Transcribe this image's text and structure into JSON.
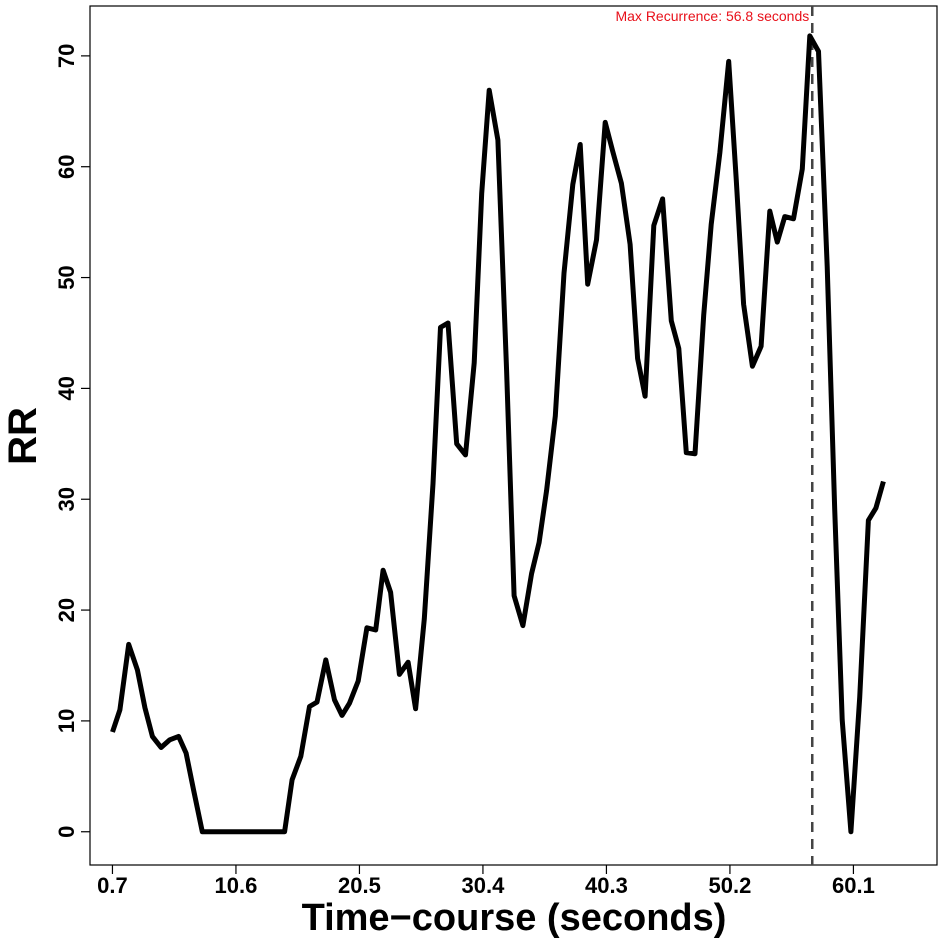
{
  "chart_data": {
    "type": "line",
    "title": "",
    "xlabel": "Time−course (seconds)",
    "ylabel": "RR",
    "xlim": [
      -1.1,
      66.8
    ],
    "ylim": [
      -3,
      74.5
    ],
    "x_ticks": [
      0.7,
      10.6,
      20.5,
      30.4,
      40.3,
      50.2,
      60.1
    ],
    "x_tick_labels": [
      "0.7",
      "10.6",
      "20.5",
      "30.4",
      "40.3",
      "50.2",
      "60.1"
    ],
    "y_ticks": [
      0,
      10,
      20,
      30,
      40,
      50,
      60,
      70
    ],
    "y_tick_labels": [
      "0",
      "10",
      "20",
      "30",
      "40",
      "50",
      "60",
      "70"
    ],
    "grid": false,
    "legend": "none",
    "series": [
      {
        "color": "#000000",
        "x": [
          0.7,
          1.3,
          2.0,
          2.7,
          3.3,
          3.9,
          4.6,
          5.3,
          6.0,
          6.6,
          7.2,
          7.9,
          8.6,
          9.2,
          9.9,
          10.6,
          11.2,
          11.8,
          12.5,
          13.2,
          13.9,
          14.5,
          15.1,
          15.8,
          16.5,
          17.1,
          17.8,
          18.5,
          19.1,
          19.7,
          20.4,
          21.1,
          21.8,
          22.4,
          23.0,
          23.7,
          24.4,
          25.0,
          25.7,
          26.4,
          27.0,
          27.6,
          28.3,
          29.0,
          29.7,
          30.3,
          30.9,
          31.6,
          32.3,
          32.9,
          33.6,
          34.3,
          34.9,
          35.5,
          36.2,
          36.9,
          37.6,
          38.2,
          38.8,
          39.5,
          40.2,
          40.8,
          41.5,
          42.2,
          42.8,
          43.4,
          44.1,
          44.8,
          45.5,
          46.1,
          46.7,
          47.4,
          48.1,
          48.7,
          49.4,
          50.1,
          50.7,
          51.3,
          52.0,
          52.7,
          53.4,
          54.0,
          54.6,
          55.3,
          56.0,
          56.6,
          57.3,
          58.0,
          58.6,
          59.2,
          59.9,
          60.6,
          61.3,
          61.9,
          62.5
        ],
        "y": [
          9.0,
          11.0,
          16.9,
          14.6,
          11.2,
          8.6,
          7.6,
          8.3,
          8.6,
          7.1,
          3.8,
          0.0,
          0.0,
          0.0,
          0.0,
          0.0,
          0.0,
          0.0,
          0.0,
          0.0,
          0.0,
          0.0,
          4.7,
          6.8,
          11.3,
          11.7,
          15.5,
          11.9,
          10.5,
          11.6,
          13.6,
          18.4,
          18.2,
          23.6,
          21.6,
          14.2,
          15.3,
          11.1,
          19.2,
          31.4,
          45.5,
          45.9,
          35.0,
          34.0,
          42.3,
          57.6,
          66.9,
          62.4,
          41.6,
          21.3,
          18.6,
          23.3,
          26.1,
          30.8,
          37.5,
          50.4,
          58.4,
          62.0,
          49.4,
          53.4,
          64.0,
          61.4,
          58.5,
          53.0,
          42.7,
          39.3,
          54.7,
          57.1,
          46.1,
          43.6,
          34.2,
          34.1,
          46.6,
          54.8,
          61.3,
          69.5,
          58.9,
          47.6,
          42.0,
          43.8,
          56.0,
          53.2,
          55.5,
          55.3,
          59.8,
          71.8,
          70.4,
          51.0,
          29.1,
          10.1,
          0.0,
          12.1,
          28.1,
          29.2,
          31.6
        ]
      }
    ],
    "annotations": [
      {
        "type": "vline",
        "x": 56.8,
        "color": "#444444",
        "style": "dashed"
      },
      {
        "type": "text",
        "text": "Max Recurrence: 56.8 seconds",
        "x": 56.8,
        "y": 73.6,
        "align": "right",
        "color": "#e8101a"
      }
    ]
  }
}
